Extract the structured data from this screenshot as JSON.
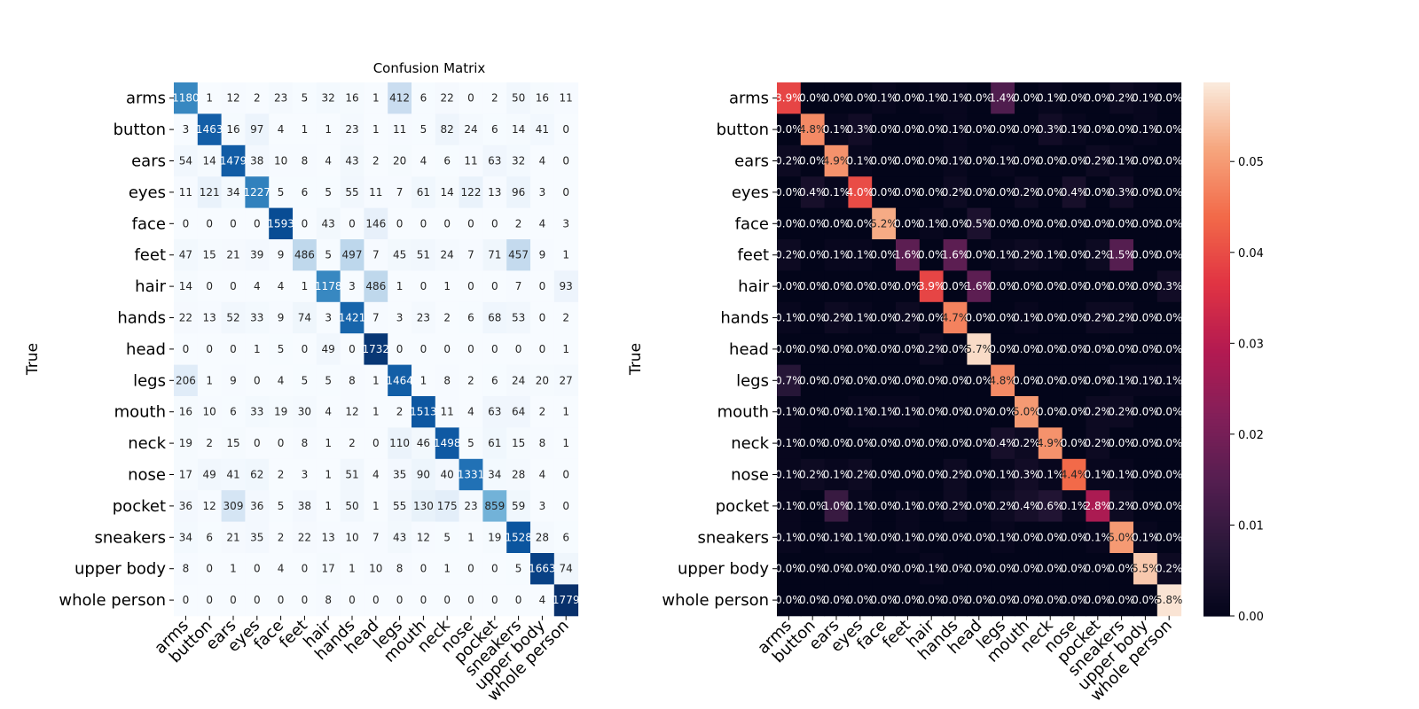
{
  "chart_data": [
    {
      "type": "heatmap",
      "title": "Confusion Matrix",
      "ylabel": "True",
      "xlabel": "",
      "colormap": "Blues",
      "color_range": [
        0,
        1779
      ],
      "labels": [
        "arms",
        "button",
        "ears",
        "eyes",
        "face",
        "feet",
        "hair",
        "hands",
        "head",
        "legs",
        "mouth",
        "neck",
        "nose",
        "pocket",
        "sneakers",
        "upper body",
        "whole person"
      ],
      "values": [
        [
          1180,
          1,
          12,
          2,
          23,
          5,
          32,
          16,
          1,
          412,
          6,
          22,
          0,
          2,
          50,
          16,
          11
        ],
        [
          3,
          1463,
          16,
          97,
          4,
          1,
          1,
          23,
          1,
          11,
          5,
          82,
          24,
          6,
          14,
          41,
          0
        ],
        [
          54,
          14,
          1479,
          38,
          10,
          8,
          4,
          43,
          2,
          20,
          4,
          6,
          11,
          63,
          32,
          4,
          0
        ],
        [
          11,
          121,
          34,
          1227,
          5,
          6,
          5,
          55,
          11,
          7,
          61,
          14,
          122,
          13,
          96,
          3,
          0
        ],
        [
          0,
          0,
          0,
          0,
          1593,
          0,
          43,
          0,
          146,
          0,
          0,
          0,
          0,
          0,
          2,
          4,
          3
        ],
        [
          47,
          15,
          21,
          39,
          9,
          486,
          5,
          497,
          7,
          45,
          51,
          24,
          7,
          71,
          457,
          9,
          1
        ],
        [
          14,
          0,
          0,
          4,
          4,
          1,
          1178,
          3,
          486,
          1,
          0,
          1,
          0,
          0,
          7,
          0,
          93
        ],
        [
          22,
          13,
          52,
          33,
          9,
          74,
          3,
          1421,
          7,
          3,
          23,
          2,
          6,
          68,
          53,
          0,
          2
        ],
        [
          0,
          0,
          0,
          1,
          5,
          0,
          49,
          0,
          1732,
          0,
          0,
          0,
          0,
          0,
          0,
          0,
          1
        ],
        [
          206,
          1,
          9,
          0,
          4,
          5,
          5,
          8,
          1,
          1464,
          1,
          8,
          2,
          6,
          24,
          20,
          27
        ],
        [
          16,
          10,
          6,
          33,
          19,
          30,
          4,
          12,
          1,
          2,
          1513,
          11,
          4,
          63,
          64,
          2,
          1
        ],
        [
          19,
          2,
          15,
          0,
          0,
          8,
          1,
          2,
          0,
          110,
          46,
          1498,
          5,
          61,
          15,
          8,
          1
        ],
        [
          17,
          49,
          41,
          62,
          2,
          3,
          1,
          51,
          4,
          35,
          90,
          40,
          1331,
          34,
          28,
          4,
          0
        ],
        [
          36,
          12,
          309,
          36,
          5,
          38,
          1,
          50,
          1,
          55,
          130,
          175,
          23,
          859,
          59,
          3,
          0
        ],
        [
          34,
          6,
          21,
          35,
          2,
          22,
          13,
          10,
          7,
          43,
          12,
          5,
          1,
          19,
          1528,
          28,
          6
        ],
        [
          8,
          0,
          1,
          0,
          4,
          0,
          17,
          1,
          10,
          8,
          0,
          1,
          0,
          0,
          5,
          1663,
          74
        ],
        [
          0,
          0,
          0,
          0,
          0,
          0,
          8,
          0,
          0,
          0,
          0,
          0,
          0,
          0,
          0,
          4,
          1779
        ]
      ]
    },
    {
      "type": "heatmap",
      "title": "",
      "ylabel": "True",
      "xlabel": "",
      "colormap": "rocket",
      "color_range": [
        0,
        0.0587
      ],
      "value_format": "percent",
      "colorbar_ticks": [
        "0.00",
        "0.01",
        "0.02",
        "0.03",
        "0.04",
        "0.05"
      ],
      "colorbar_tick_values": [
        0,
        0.01,
        0.02,
        0.03,
        0.04,
        0.05
      ],
      "labels": [
        "arms",
        "button",
        "ears",
        "eyes",
        "face",
        "feet",
        "hair",
        "hands",
        "head",
        "legs",
        "mouth",
        "neck",
        "nose",
        "pocket",
        "sneakers",
        "upper body",
        "whole person"
      ],
      "values": [
        [
          0.039,
          0,
          0,
          0,
          0.001,
          0,
          0.001,
          0.001,
          0,
          0.014,
          0,
          0.001,
          0,
          0,
          0.002,
          0.001,
          0
        ],
        [
          0,
          0.048,
          0.001,
          0.003,
          0,
          0,
          0,
          0.001,
          0,
          0,
          0,
          0.003,
          0.001,
          0,
          0,
          0.001,
          0
        ],
        [
          0.002,
          0,
          0.049,
          0.001,
          0,
          0,
          0,
          0.001,
          0,
          0.001,
          0,
          0,
          0,
          0.002,
          0.001,
          0,
          0
        ],
        [
          0,
          0.004,
          0.001,
          0.04,
          0,
          0,
          0,
          0.002,
          0,
          0,
          0.002,
          0,
          0.004,
          0,
          0.003,
          0,
          0
        ],
        [
          0,
          0,
          0,
          0,
          0.052,
          0,
          0.001,
          0,
          0.005,
          0,
          0,
          0,
          0,
          0,
          0,
          0,
          0
        ],
        [
          0.002,
          0,
          0.001,
          0.001,
          0,
          0.016,
          0,
          0.016,
          0,
          0.001,
          0.002,
          0.001,
          0,
          0.002,
          0.015,
          0,
          0
        ],
        [
          0,
          0,
          0,
          0,
          0,
          0,
          0.039,
          0,
          0.016,
          0,
          0,
          0,
          0,
          0,
          0,
          0,
          0.003
        ],
        [
          0.001,
          0,
          0.002,
          0.001,
          0,
          0.002,
          0,
          0.047,
          0,
          0,
          0.001,
          0,
          0,
          0.002,
          0.002,
          0,
          0
        ],
        [
          0,
          0,
          0,
          0,
          0,
          0,
          0.002,
          0,
          0.057,
          0,
          0,
          0,
          0,
          0,
          0,
          0,
          0
        ],
        [
          0.007,
          0,
          0,
          0,
          0,
          0,
          0,
          0,
          0,
          0.048,
          0,
          0,
          0,
          0,
          0.001,
          0.001,
          0.001
        ],
        [
          0.001,
          0,
          0,
          0.001,
          0.001,
          0.001,
          0,
          0,
          0,
          0,
          0.05,
          0,
          0,
          0.002,
          0.002,
          0,
          0
        ],
        [
          0.001,
          0,
          0,
          0,
          0,
          0,
          0,
          0,
          0,
          0.004,
          0.002,
          0.049,
          0,
          0.002,
          0,
          0,
          0
        ],
        [
          0.001,
          0.002,
          0.001,
          0.002,
          0,
          0,
          0,
          0.002,
          0,
          0.001,
          0.003,
          0.001,
          0.044,
          0.001,
          0.001,
          0,
          0
        ],
        [
          0.001,
          0,
          0.01,
          0.001,
          0,
          0.001,
          0,
          0.002,
          0,
          0.002,
          0.004,
          0.006,
          0.001,
          0.028,
          0.002,
          0,
          0
        ],
        [
          0.001,
          0,
          0.001,
          0.001,
          0,
          0.001,
          0,
          0,
          0,
          0.001,
          0,
          0,
          0,
          0.001,
          0.05,
          0.001,
          0
        ],
        [
          0,
          0,
          0,
          0,
          0,
          0,
          0.001,
          0,
          0,
          0,
          0,
          0,
          0,
          0,
          0,
          0.055,
          0.002
        ],
        [
          0,
          0,
          0,
          0,
          0,
          0,
          0,
          0,
          0,
          0,
          0,
          0,
          0,
          0,
          0,
          0,
          0.058
        ]
      ]
    }
  ]
}
